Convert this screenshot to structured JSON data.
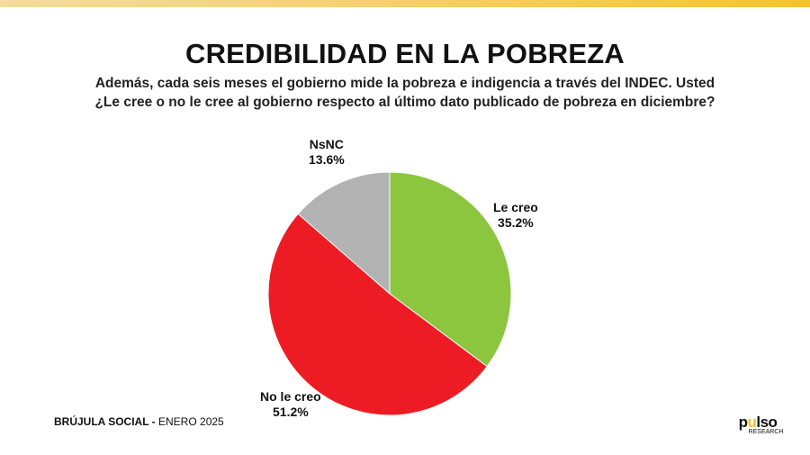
{
  "header": {
    "title": "CREDIBILIDAD EN LA POBREZA",
    "subtitle_line1": "Además, cada seis meses el gobierno mide la pobreza e indigencia a través del INDEC. Usted",
    "subtitle_line2": "¿Le cree o no le cree al gobierno respecto al último dato publicado de pobreza en diciembre?"
  },
  "chart_data": {
    "type": "pie",
    "title": "CREDIBILIDAD EN LA POBREZA",
    "slices": [
      {
        "label": "Le creo",
        "value": 35.2,
        "display": "35.2%",
        "color": "#8cc63f"
      },
      {
        "label": "No le creo",
        "value": 51.2,
        "display": "51.2%",
        "color": "#ed1c24"
      },
      {
        "label": "NsNC",
        "value": 13.6,
        "display": "13.6%",
        "color": "#b3b3b3"
      }
    ]
  },
  "footer": {
    "brand": "BRÚJULA SOCIAL -",
    "date": " ENERO 2025"
  },
  "logo": {
    "text_a": "p",
    "text_b": "u",
    "text_c": "lso",
    "sub": "RESEARCH"
  }
}
